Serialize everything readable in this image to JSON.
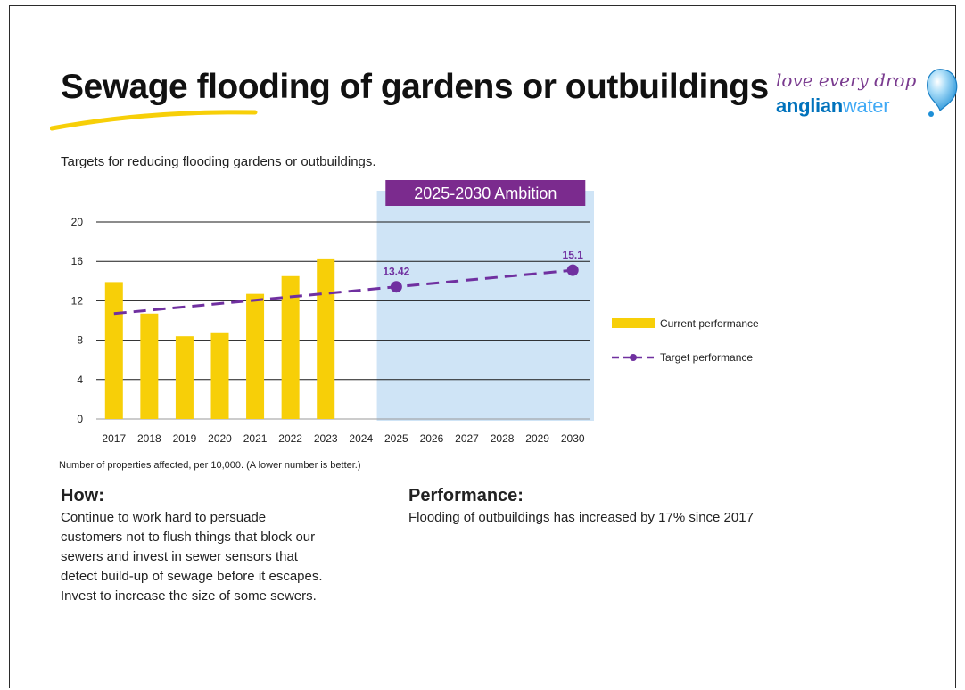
{
  "title": "Sewage flooding of gardens or outbuildings",
  "logo": {
    "tagline": "love every drop",
    "brand_bold": "anglian",
    "brand_light": "water",
    "colors": {
      "tagline": "#7a3b8f",
      "brand": "#0072bc",
      "drop": "#3fa9f5"
    }
  },
  "subtitle": "Targets for reducing flooding gardens or outbuildings.",
  "chart_data": {
    "type": "bar",
    "categories": [
      "2017",
      "2018",
      "2019",
      "2020",
      "2021",
      "2022",
      "2023",
      "2024",
      "2025",
      "2026",
      "2027",
      "2028",
      "2029",
      "2030"
    ],
    "ylim": [
      0,
      20
    ],
    "yticks": [
      0,
      4,
      8,
      12,
      16,
      20
    ],
    "grid": true,
    "legend_position": "right",
    "series": [
      {
        "name": "Current performance",
        "kind": "bar",
        "color": "#f7cf08",
        "values": [
          13.9,
          10.7,
          8.4,
          8.8,
          12.7,
          14.5,
          16.3,
          null,
          null,
          null,
          null,
          null,
          null,
          null
        ]
      },
      {
        "name": "Target performance",
        "kind": "line",
        "style": "dashed",
        "color": "#7030a0",
        "x": [
          "2017",
          "2025",
          "2030"
        ],
        "values": [
          10.7,
          13.42,
          15.1
        ],
        "markers": [
          "2025",
          "2030"
        ]
      }
    ],
    "data_labels": [
      {
        "x": "2025",
        "text": "13.42"
      },
      {
        "x": "2030",
        "text": "15.1"
      }
    ],
    "ambition": {
      "label": "2025-2030 Ambition",
      "from": "2025",
      "to": "2030",
      "shade_color": "#cfe4f6",
      "label_color": "#7b2b8e"
    }
  },
  "note": "Number of properties affected, per 10,000. (A lower number is better.)",
  "how": {
    "heading": "How:",
    "lines": [
      "Continue to work hard to persuade",
      "customers not to flush things that block our",
      "sewers and invest in sewer sensors that",
      "detect build-up of sewage before it escapes.",
      "Invest to increase the size of some sewers."
    ]
  },
  "performance": {
    "heading": "Performance:",
    "text": "Flooding of outbuildings has increased by 17% since 2017"
  }
}
